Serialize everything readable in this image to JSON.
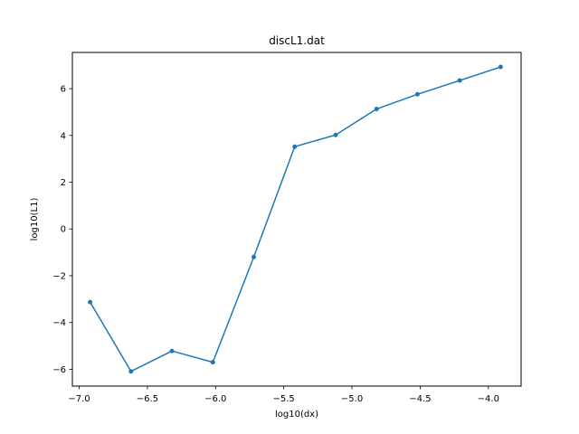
{
  "chart_data": {
    "type": "line",
    "title": "discL1.dat",
    "xlabel": "log10(dx)",
    "ylabel": "log10(L1)",
    "xlim": [
      -7.05,
      -3.76
    ],
    "ylim": [
      -6.72,
      7.55
    ],
    "xticks": [
      -7.0,
      -6.5,
      -6.0,
      -5.5,
      -5.0,
      -4.5,
      -4.0
    ],
    "xtick_labels": [
      "−7.0",
      "−6.5",
      "−6.0",
      "−5.5",
      "−5.0",
      "−4.5",
      "−4.0"
    ],
    "yticks": [
      -6,
      -4,
      -2,
      0,
      2,
      4,
      6
    ],
    "ytick_labels": [
      "−6",
      "−4",
      "−2",
      "0",
      "2",
      "4",
      "6"
    ],
    "grid": false,
    "series": [
      {
        "color": "#1f77b4",
        "marker": "circle",
        "x": [
          -6.92,
          -6.62,
          -6.32,
          -6.02,
          -5.72,
          -5.42,
          -5.12,
          -4.82,
          -4.52,
          -4.21,
          -3.91
        ],
        "y": [
          -3.13,
          -6.09,
          -5.22,
          -5.7,
          -1.2,
          3.52,
          4.02,
          5.13,
          5.76,
          6.35,
          6.93
        ]
      }
    ]
  }
}
